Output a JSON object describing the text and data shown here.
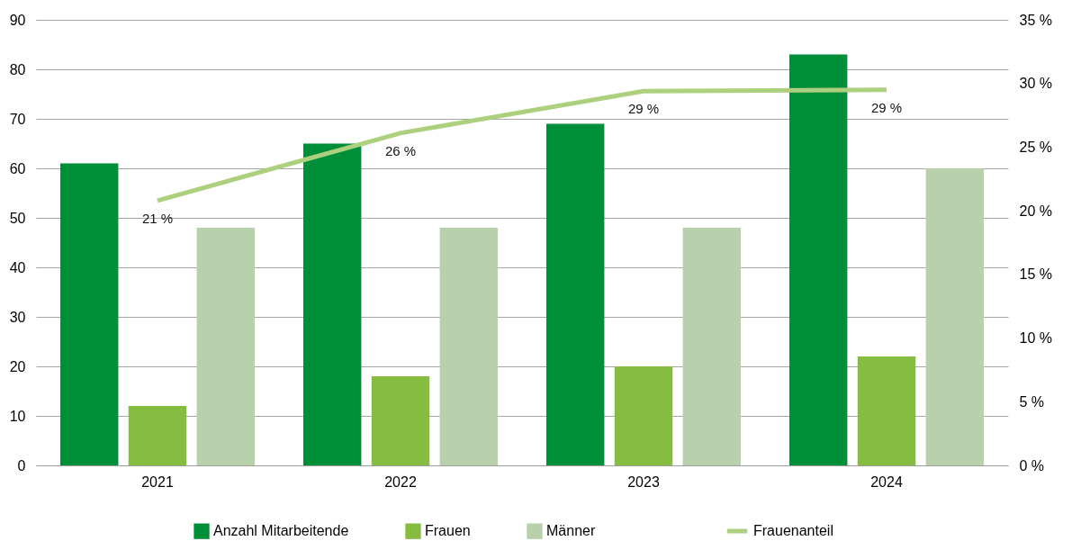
{
  "chart_data": {
    "type": "bar",
    "categories": [
      "2021",
      "2022",
      "2023",
      "2024"
    ],
    "series": [
      {
        "name": "Anzahl Mitarbeitende",
        "color": "#008f39",
        "values": [
          61,
          65,
          69,
          83
        ]
      },
      {
        "name": "Frauen",
        "color": "#86bc40",
        "values": [
          12,
          18,
          20,
          22
        ]
      },
      {
        "name": "Männer",
        "color": "#b8d0ab",
        "values": [
          48,
          48,
          48,
          60
        ]
      },
      {
        "name": "Frauenanteil",
        "type": "line",
        "axis": "y2",
        "color": "#add07f",
        "values": [
          20.8,
          26.1,
          29.4,
          29.5
        ],
        "value_labels": [
          "21 %",
          "26 %",
          "29 %",
          "29 %"
        ]
      }
    ],
    "ylim": [
      0,
      90
    ],
    "yticks": [
      0,
      10,
      20,
      30,
      40,
      50,
      60,
      70,
      80,
      90
    ],
    "y2lim": [
      0,
      35
    ],
    "y2ticks": [
      {
        "value": 0,
        "label": "0 %"
      },
      {
        "value": 5,
        "label": "5 %"
      },
      {
        "value": 10,
        "label": "10 %"
      },
      {
        "value": 15,
        "label": "15 %"
      },
      {
        "value": 20,
        "label": "20 %"
      },
      {
        "value": 25,
        "label": "25 %"
      },
      {
        "value": 30,
        "label": "30 %"
      },
      {
        "value": 35,
        "label": "35 %"
      }
    ],
    "grid": "y",
    "legend": "bottom"
  }
}
